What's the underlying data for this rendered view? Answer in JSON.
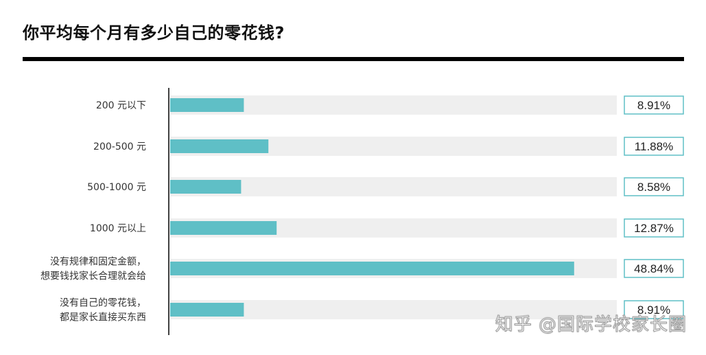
{
  "chart_data": {
    "type": "bar",
    "orientation": "horizontal",
    "title": "你平均每个月有多少自己的零花钱?",
    "categories": [
      [
        "200 元以下"
      ],
      [
        "200-500 元"
      ],
      [
        "500-1000 元"
      ],
      [
        "1000 元以上"
      ],
      [
        "没有规律和固定金额，",
        "想要钱找家长合理就会给"
      ],
      [
        "没有自己的零花钱，",
        "都是家长直接买东西"
      ]
    ],
    "values": [
      8.91,
      11.88,
      8.58,
      12.87,
      48.84,
      8.91
    ],
    "value_labels": [
      "8.91%",
      "11.88%",
      "8.58%",
      "12.87%",
      "48.84%",
      "8.91%"
    ],
    "unit": "%",
    "xlim": [
      0,
      54
    ],
    "grid": false,
    "colors": {
      "bar": "#5fbfc6",
      "track": "#efefef",
      "label_border": "#5fbfc6",
      "axis": "#000000"
    }
  },
  "watermark": "知乎 @国际学校家长圈"
}
